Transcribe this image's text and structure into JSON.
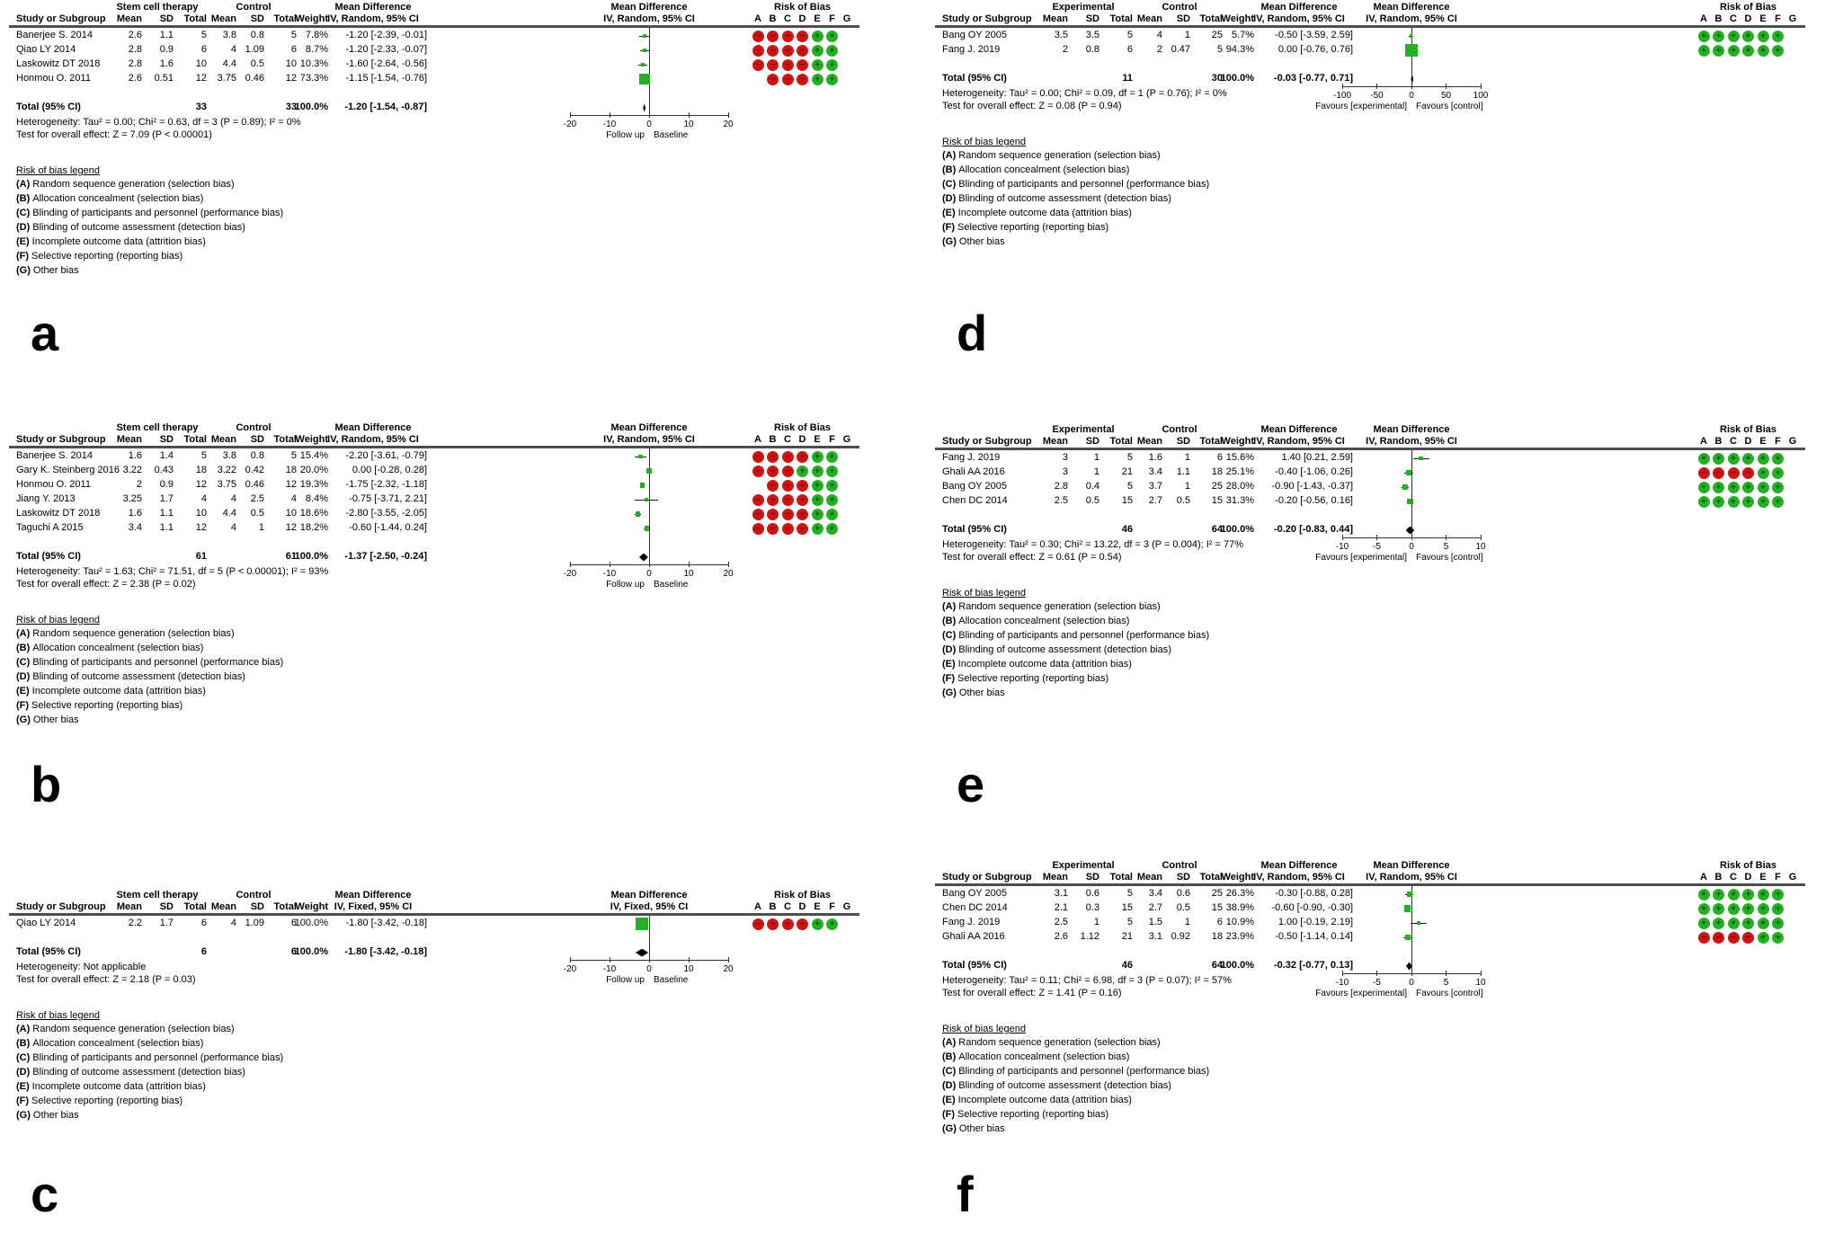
{
  "table_columns": {
    "study": "Study or Subgroup",
    "mean": "Mean",
    "sd": "SD",
    "total": "Total",
    "weight": "Weight"
  },
  "rob_legend": {
    "title": "Risk of bias legend",
    "items": [
      {
        "key": "(A)",
        "text": "Random sequence generation (selection bias)"
      },
      {
        "key": "(B)",
        "text": "Allocation concealment (selection bias)"
      },
      {
        "key": "(C)",
        "text": "Blinding of participants and personnel (performance bias)"
      },
      {
        "key": "(D)",
        "text": "Blinding of outcome assessment (detection bias)"
      },
      {
        "key": "(E)",
        "text": "Incomplete outcome data (attrition bias)"
      },
      {
        "key": "(F)",
        "text": "Selective reporting (reporting bias)"
      },
      {
        "key": "(G)",
        "text": "Other bias"
      }
    ]
  },
  "colors": {
    "low_risk": "#22b122",
    "high_risk": "#cc1414",
    "marker": "#22b122",
    "diamond": "#000000",
    "line": "#333333"
  },
  "chart_data": [
    {
      "type": "scatter",
      "subtype": "forest-plot",
      "panel_label": "a",
      "group1": "Stem cell therapy",
      "group2": "Control",
      "effect_title": "Mean Difference",
      "method": "IV, Random, 95% CI",
      "rob_title": "Risk of Bias",
      "rob_domains": [
        "A",
        "B",
        "C",
        "D",
        "E",
        "F",
        "G"
      ],
      "studies": [
        {
          "name": "Banerjee S. 2014",
          "mean1": "2.6",
          "sd1": "1.1",
          "n1": "5",
          "mean2": "3.8",
          "sd2": "0.8",
          "n2": "5",
          "weight": "7.8%",
          "ci_text": "-1.20 [-2.39, -0.01]",
          "est": -1.2,
          "lo": -2.39,
          "hi": -0.01,
          "rob": [
            "−",
            "−",
            "−",
            "−",
            "+",
            "+",
            ""
          ]
        },
        {
          "name": "Qiao LY 2014",
          "mean1": "2.8",
          "sd1": "0.9",
          "n1": "6",
          "mean2": "4",
          "sd2": "1.09",
          "n2": "6",
          "weight": "8.7%",
          "ci_text": "-1.20 [-2.33, -0.07]",
          "est": -1.2,
          "lo": -2.33,
          "hi": -0.07,
          "rob": [
            "−",
            "−",
            "−",
            "−",
            "+",
            "+",
            ""
          ]
        },
        {
          "name": "Laskowitz DT 2018",
          "mean1": "2.8",
          "sd1": "1.6",
          "n1": "10",
          "mean2": "4.4",
          "sd2": "0.5",
          "n2": "10",
          "weight": "10.3%",
          "ci_text": "-1.60 [-2.64, -0.56]",
          "est": -1.6,
          "lo": -2.64,
          "hi": -0.56,
          "rob": [
            "−",
            "−",
            "−",
            "−",
            "+",
            "+",
            ""
          ]
        },
        {
          "name": "Honmou O. 2011",
          "mean1": "2.6",
          "sd1": "0.51",
          "n1": "12",
          "mean2": "3.75",
          "sd2": "0.46",
          "n2": "12",
          "weight": "73.3%",
          "ci_text": "-1.15 [-1.54, -0.76]",
          "est": -1.15,
          "lo": -1.54,
          "hi": -0.76,
          "rob": [
            "",
            "−",
            "−",
            "−",
            "+",
            "+",
            ""
          ]
        }
      ],
      "total": {
        "label": "Total (95% CI)",
        "n1": "33",
        "n2": "33",
        "weight": "100.0%",
        "ci_text": "-1.20 [-1.54, -0.87]",
        "est": -1.2,
        "lo": -1.54,
        "hi": -0.87
      },
      "heterogeneity": "Heterogeneity: Tau² = 0.00; Chi² = 0.63, df = 3 (P = 0.89); I² = 0%",
      "overall_effect": "Test for overall effect: Z = 7.09 (P < 0.00001)",
      "axis": {
        "min": -20,
        "max": 20,
        "ticks": [
          "-20",
          "-10",
          "0",
          "10",
          "20"
        ],
        "label_left": "Follow up",
        "label_right": "Baseline"
      }
    },
    {
      "type": "scatter",
      "subtype": "forest-plot",
      "panel_label": "b",
      "group1": "Stem cell therapy",
      "group2": "Control",
      "effect_title": "Mean Difference",
      "method": "IV, Random, 95% CI",
      "rob_title": "Risk of Bias",
      "rob_domains": [
        "A",
        "B",
        "C",
        "D",
        "E",
        "F",
        "G"
      ],
      "studies": [
        {
          "name": "Banerjee S. 2014",
          "mean1": "1.6",
          "sd1": "1.4",
          "n1": "5",
          "mean2": "3.8",
          "sd2": "0.8",
          "n2": "5",
          "weight": "15.4%",
          "ci_text": "-2.20 [-3.61, -0.79]",
          "est": -2.2,
          "lo": -3.61,
          "hi": -0.79,
          "rob": [
            "−",
            "−",
            "−",
            "−",
            "+",
            "+",
            ""
          ]
        },
        {
          "name": "Gary K. Steinberg 2016",
          "mean1": "3.22",
          "sd1": "0.43",
          "n1": "18",
          "mean2": "3.22",
          "sd2": "0.42",
          "n2": "18",
          "weight": "20.0%",
          "ci_text": "0.00 [-0.28, 0.28]",
          "est": 0.0,
          "lo": -0.28,
          "hi": 0.28,
          "rob": [
            "−",
            "−",
            "−",
            "+",
            "+",
            "+",
            ""
          ]
        },
        {
          "name": "Honmou O. 2011",
          "mean1": "2",
          "sd1": "0.9",
          "n1": "12",
          "mean2": "3.75",
          "sd2": "0.46",
          "n2": "12",
          "weight": "19.3%",
          "ci_text": "-1.75 [-2.32, -1.18]",
          "est": -1.75,
          "lo": -2.32,
          "hi": -1.18,
          "rob": [
            "",
            "−",
            "−",
            "−",
            "+",
            "+",
            ""
          ]
        },
        {
          "name": "Jiang Y. 2013",
          "mean1": "3.25",
          "sd1": "1.7",
          "n1": "4",
          "mean2": "4",
          "sd2": "2.5",
          "n2": "4",
          "weight": "8.4%",
          "ci_text": "-0.75 [-3.71, 2.21]",
          "est": -0.75,
          "lo": -3.71,
          "hi": 2.21,
          "rob": [
            "−",
            "−",
            "−",
            "−",
            "+",
            "+",
            ""
          ]
        },
        {
          "name": "Laskowitz DT 2018",
          "mean1": "1.6",
          "sd1": "1.1",
          "n1": "10",
          "mean2": "4.4",
          "sd2": "0.5",
          "n2": "10",
          "weight": "18.6%",
          "ci_text": "-2.80 [-3.55, -2.05]",
          "est": -2.8,
          "lo": -3.55,
          "hi": -2.05,
          "rob": [
            "−",
            "−",
            "−",
            "−",
            "+",
            "+",
            ""
          ]
        },
        {
          "name": "Taguchi A 2015",
          "mean1": "3.4",
          "sd1": "1.1",
          "n1": "12",
          "mean2": "4",
          "sd2": "1",
          "n2": "12",
          "weight": "18.2%",
          "ci_text": "-0.60 [-1.44, 0.24]",
          "est": -0.6,
          "lo": -1.44,
          "hi": 0.24,
          "rob": [
            "−",
            "−",
            "−",
            "−",
            "+",
            "+",
            ""
          ]
        }
      ],
      "total": {
        "label": "Total (95% CI)",
        "n1": "61",
        "n2": "61",
        "weight": "100.0%",
        "ci_text": "-1.37 [-2.50, -0.24]",
        "est": -1.37,
        "lo": -2.5,
        "hi": -0.24
      },
      "heterogeneity": "Heterogeneity: Tau² = 1.63; Chi² = 71.51, df = 5 (P < 0.00001); I² = 93%",
      "overall_effect": "Test for overall effect: Z = 2.38 (P = 0.02)",
      "axis": {
        "min": -20,
        "max": 20,
        "ticks": [
          "-20",
          "-10",
          "0",
          "10",
          "20"
        ],
        "label_left": "Follow up",
        "label_right": "Baseline"
      }
    },
    {
      "type": "scatter",
      "subtype": "forest-plot",
      "panel_label": "c",
      "group1": "Stem cell therapy",
      "group2": "Control",
      "effect_title": "Mean Difference",
      "method": "IV, Fixed, 95% CI",
      "rob_title": "Risk of Bias",
      "rob_domains": [
        "A",
        "B",
        "C",
        "D",
        "E",
        "F",
        "G"
      ],
      "studies": [
        {
          "name": "Qiao LY 2014",
          "mean1": "2.2",
          "sd1": "1.7",
          "n1": "6",
          "mean2": "4",
          "sd2": "1.09",
          "n2": "6",
          "weight": "100.0%",
          "ci_text": "-1.80 [-3.42, -0.18]",
          "est": -1.8,
          "lo": -3.42,
          "hi": -0.18,
          "rob": [
            "−",
            "−",
            "−",
            "−",
            "+",
            "+",
            ""
          ]
        }
      ],
      "total": {
        "label": "Total (95% CI)",
        "n1": "6",
        "n2": "6",
        "weight": "100.0%",
        "ci_text": "-1.80 [-3.42, -0.18]",
        "est": -1.8,
        "lo": -3.42,
        "hi": -0.18
      },
      "heterogeneity": "Heterogeneity: Not applicable",
      "overall_effect": "Test for overall effect: Z = 2.18 (P = 0.03)",
      "axis": {
        "min": -20,
        "max": 20,
        "ticks": [
          "-20",
          "-10",
          "0",
          "10",
          "20"
        ],
        "label_left": "Follow up",
        "label_right": "Baseline"
      }
    },
    {
      "type": "scatter",
      "subtype": "forest-plot",
      "panel_label": "d",
      "group1": "Experimental",
      "group2": "Control",
      "effect_title": "Mean Difference",
      "method": "IV, Random, 95% CI",
      "rob_title": "Risk of Bias",
      "rob_domains": [
        "A",
        "B",
        "C",
        "D",
        "E",
        "F",
        "G"
      ],
      "studies": [
        {
          "name": "Bang OY 2005",
          "mean1": "3.5",
          "sd1": "3.5",
          "n1": "5",
          "mean2": "4",
          "sd2": "1",
          "n2": "25",
          "weight": "5.7%",
          "ci_text": "-0.50 [-3.59, 2.59]",
          "est": -0.5,
          "lo": -3.59,
          "hi": 2.59,
          "rob": [
            "+",
            "+",
            "+",
            "+",
            "+",
            "+",
            ""
          ]
        },
        {
          "name": "Fang J. 2019",
          "mean1": "2",
          "sd1": "0.8",
          "n1": "6",
          "mean2": "2",
          "sd2": "0.47",
          "n2": "5",
          "weight": "94.3%",
          "ci_text": "0.00 [-0.76, 0.76]",
          "est": 0.0,
          "lo": -0.76,
          "hi": 0.76,
          "rob": [
            "+",
            "+",
            "+",
            "+",
            "+",
            "+",
            ""
          ]
        }
      ],
      "total": {
        "label": "Total (95% CI)",
        "n1": "11",
        "n2": "30",
        "weight": "100.0%",
        "ci_text": "-0.03 [-0.77, 0.71]",
        "est": -0.03,
        "lo": -0.77,
        "hi": 0.71
      },
      "heterogeneity": "Heterogeneity: Tau² = 0.00; Chi² = 0.09, df = 1 (P = 0.76); I² = 0%",
      "overall_effect": "Test for overall effect: Z = 0.08 (P = 0.94)",
      "axis": {
        "min": -100,
        "max": 100,
        "ticks": [
          "-100",
          "-50",
          "0",
          "50",
          "100"
        ],
        "label_left": "Favours [experimental]",
        "label_right": "Favours [control]"
      }
    },
    {
      "type": "scatter",
      "subtype": "forest-plot",
      "panel_label": "e",
      "group1": "Experimental",
      "group2": "Control",
      "effect_title": "Mean Difference",
      "method": "IV, Random, 95% CI",
      "rob_title": "Risk of Bias",
      "rob_domains": [
        "A",
        "B",
        "C",
        "D",
        "E",
        "F",
        "G"
      ],
      "studies": [
        {
          "name": "Fang J. 2019",
          "mean1": "3",
          "sd1": "1",
          "n1": "5",
          "mean2": "1.6",
          "sd2": "1",
          "n2": "6",
          "weight": "15.6%",
          "ci_text": "1.40 [0.21, 2.59]",
          "est": 1.4,
          "lo": 0.21,
          "hi": 2.59,
          "rob": [
            "+",
            "+",
            "+",
            "+",
            "+",
            "+",
            ""
          ]
        },
        {
          "name": "Ghali AA 2016",
          "mean1": "3",
          "sd1": "1",
          "n1": "21",
          "mean2": "3.4",
          "sd2": "1.1",
          "n2": "18",
          "weight": "25.1%",
          "ci_text": "-0.40 [-1.06, 0.26]",
          "est": -0.4,
          "lo": -1.06,
          "hi": 0.26,
          "rob": [
            "−",
            "−",
            "−",
            "−",
            "+",
            "+",
            ""
          ]
        },
        {
          "name": "Bang OY 2005",
          "mean1": "2.8",
          "sd1": "0.4",
          "n1": "5",
          "mean2": "3.7",
          "sd2": "1",
          "n2": "25",
          "weight": "28.0%",
          "ci_text": "-0.90 [-1.43, -0.37]",
          "est": -0.9,
          "lo": -1.43,
          "hi": -0.37,
          "rob": [
            "+",
            "+",
            "+",
            "+",
            "+",
            "+",
            ""
          ]
        },
        {
          "name": "Chen DC 2014",
          "mean1": "2.5",
          "sd1": "0.5",
          "n1": "15",
          "mean2": "2.7",
          "sd2": "0.5",
          "n2": "15",
          "weight": "31.3%",
          "ci_text": "-0.20 [-0.56, 0.16]",
          "est": -0.2,
          "lo": -0.56,
          "hi": 0.16,
          "rob": [
            "+",
            "+",
            "+",
            "+",
            "+",
            "+",
            ""
          ]
        }
      ],
      "total": {
        "label": "Total (95% CI)",
        "n1": "46",
        "n2": "64",
        "weight": "100.0%",
        "ci_text": "-0.20 [-0.83, 0.44]",
        "est": -0.2,
        "lo": -0.83,
        "hi": 0.44
      },
      "heterogeneity": "Heterogeneity: Tau² = 0.30; Chi² = 13.22, df = 3 (P = 0.004); I² = 77%",
      "overall_effect": "Test for overall effect: Z = 0.61 (P = 0.54)",
      "axis": {
        "min": -10,
        "max": 10,
        "ticks": [
          "-10",
          "-5",
          "0",
          "5",
          "10"
        ],
        "label_left": "Favours [experimental]",
        "label_right": "Favours [control]"
      }
    },
    {
      "type": "scatter",
      "subtype": "forest-plot",
      "panel_label": "f",
      "group1": "Experimental",
      "group2": "Control",
      "effect_title": "Mean Difference",
      "method": "IV, Random, 95% CI",
      "rob_title": "Risk of Bias",
      "rob_domains": [
        "A",
        "B",
        "C",
        "D",
        "E",
        "F",
        "G"
      ],
      "studies": [
        {
          "name": "Bang OY 2005",
          "mean1": "3.1",
          "sd1": "0.6",
          "n1": "5",
          "mean2": "3.4",
          "sd2": "0.6",
          "n2": "25",
          "weight": "26.3%",
          "ci_text": "-0.30 [-0.88, 0.28]",
          "est": -0.3,
          "lo": -0.88,
          "hi": 0.28,
          "rob": [
            "+",
            "+",
            "+",
            "+",
            "+",
            "+",
            ""
          ]
        },
        {
          "name": "Chen DC 2014",
          "mean1": "2.1",
          "sd1": "0.3",
          "n1": "15",
          "mean2": "2.7",
          "sd2": "0.5",
          "n2": "15",
          "weight": "38.9%",
          "ci_text": "-0.60 [-0.90, -0.30]",
          "est": -0.6,
          "lo": -0.9,
          "hi": -0.3,
          "rob": [
            "+",
            "+",
            "+",
            "+",
            "+",
            "+",
            ""
          ]
        },
        {
          "name": "Fang J. 2019",
          "mean1": "2.5",
          "sd1": "1",
          "n1": "5",
          "mean2": "1.5",
          "sd2": "1",
          "n2": "6",
          "weight": "10.9%",
          "ci_text": "1.00 [-0.19, 2.19]",
          "est": 1.0,
          "lo": -0.19,
          "hi": 2.19,
          "rob": [
            "+",
            "+",
            "+",
            "+",
            "+",
            "+",
            ""
          ]
        },
        {
          "name": "Ghali AA 2016",
          "mean1": "2.6",
          "sd1": "1.12",
          "n1": "21",
          "mean2": "3.1",
          "sd2": "0.92",
          "n2": "18",
          "weight": "23.9%",
          "ci_text": "-0.50 [-1.14, 0.14]",
          "est": -0.5,
          "lo": -1.14,
          "hi": 0.14,
          "rob": [
            "−",
            "−",
            "−",
            "−",
            "+",
            "+",
            ""
          ]
        }
      ],
      "total": {
        "label": "Total (95% CI)",
        "n1": "46",
        "n2": "64",
        "weight": "100.0%",
        "ci_text": "-0.32 [-0.77, 0.13]",
        "est": -0.32,
        "lo": -0.77,
        "hi": 0.13
      },
      "heterogeneity": "Heterogeneity: Tau² = 0.11; Chi² = 6.98, df = 3 (P = 0.07); I² = 57%",
      "overall_effect": "Test for overall effect: Z = 1.41 (P = 0.16)",
      "axis": {
        "min": -10,
        "max": 10,
        "ticks": [
          "-10",
          "-5",
          "0",
          "5",
          "10"
        ],
        "label_left": "Favours [experimental]",
        "label_right": "Favours [control]"
      }
    }
  ]
}
